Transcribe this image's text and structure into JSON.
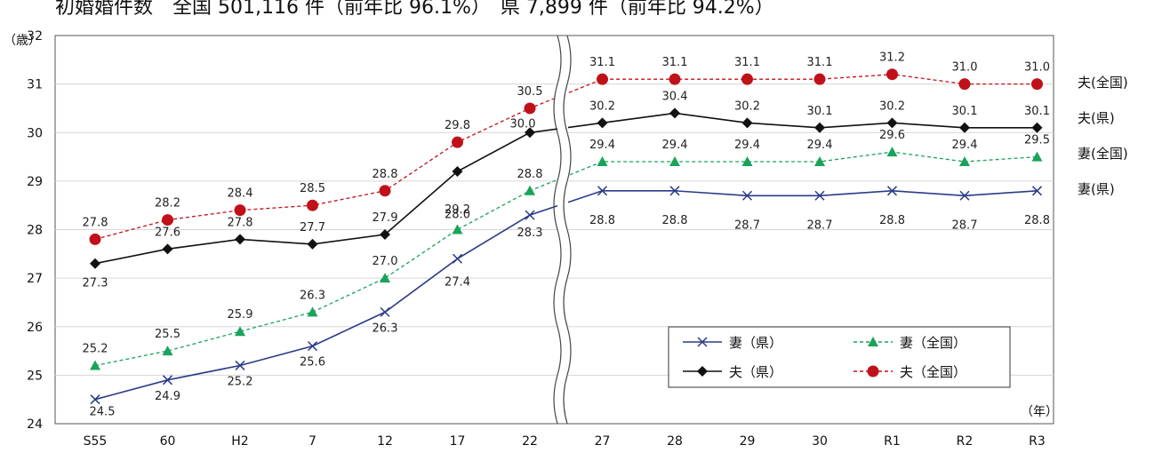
{
  "caption": "初婚婚件数　全国 501,116 件（前年比 96.1%）　県 7,899 件（前年比 94.2%）",
  "chart_data": {
    "type": "line",
    "y_unit": "（歳）",
    "x_unit": "（年）",
    "ylim": [
      24,
      32
    ],
    "yticks": [
      24,
      25,
      26,
      27,
      28,
      29,
      30,
      31,
      32
    ],
    "grid": true,
    "categories": [
      "S55",
      "60",
      "H2",
      "7",
      "12",
      "17",
      "22",
      "27",
      "28",
      "29",
      "30",
      "R1",
      "R2",
      "R3"
    ],
    "series": [
      {
        "key": "wife_pref",
        "name": "妻（県）",
        "color": "#2b3a87",
        "dashed": false,
        "marker": "x",
        "values": [
          24.5,
          24.9,
          25.2,
          25.6,
          26.3,
          27.4,
          28.3,
          28.8,
          28.8,
          28.7,
          28.7,
          28.8,
          28.7,
          28.8
        ],
        "labels": [
          "24.5",
          "24.9",
          "25.2",
          "25.6",
          "26.3",
          "27.4",
          "28.3",
          "28.8",
          "28.8",
          "28.7",
          "28.7",
          "28.8",
          "28.7",
          "28.8"
        ]
      },
      {
        "key": "wife_nat",
        "name": "妻（全国）",
        "color": "#1aa35a",
        "dashed": true,
        "marker": "triangle",
        "values": [
          25.2,
          25.5,
          25.9,
          26.3,
          27.0,
          28.0,
          28.8,
          29.4,
          29.4,
          29.4,
          29.4,
          29.6,
          29.4,
          29.5
        ],
        "labels": [
          "25.2",
          "25.5",
          "25.9",
          "26.3",
          "27.0",
          "28.0",
          "28.8",
          "29.4",
          "29.4",
          "29.4",
          "29.4",
          "29.6",
          "29.4",
          "29.5"
        ]
      },
      {
        "key": "husband_pref",
        "name": "夫（県）",
        "color": "#111111",
        "dashed": false,
        "marker": "diamond",
        "values": [
          27.3,
          27.6,
          27.8,
          27.7,
          27.9,
          29.2,
          30.0,
          30.2,
          30.4,
          30.2,
          30.1,
          30.2,
          30.1,
          30.1
        ],
        "labels": [
          "27.3",
          "27.6",
          "27.8",
          "27.7",
          "27.9",
          "29.2",
          "30.0",
          "30.2",
          "30.4",
          "30.2",
          "30.1",
          "30.2",
          "30.1",
          "30.1"
        ]
      },
      {
        "key": "husband_nat",
        "name": "夫（全国）",
        "color": "#c0111a",
        "dashed": true,
        "marker": "circle",
        "values": [
          27.8,
          28.2,
          28.4,
          28.5,
          28.8,
          29.8,
          30.5,
          31.1,
          31.1,
          31.1,
          31.1,
          31.2,
          31.0,
          31.0
        ],
        "labels": [
          "27.8",
          "28.2",
          "28.4",
          "28.5",
          "28.8",
          "29.8",
          "30.5",
          "31.1",
          "31.1",
          "31.1",
          "31.1",
          "31.2",
          "31.0",
          "31.0"
        ]
      }
    ],
    "side_labels": [
      "夫(全国)",
      "夫(県)",
      "妻(全国)",
      "妻(県)"
    ],
    "legend_position": "bottom-right"
  }
}
